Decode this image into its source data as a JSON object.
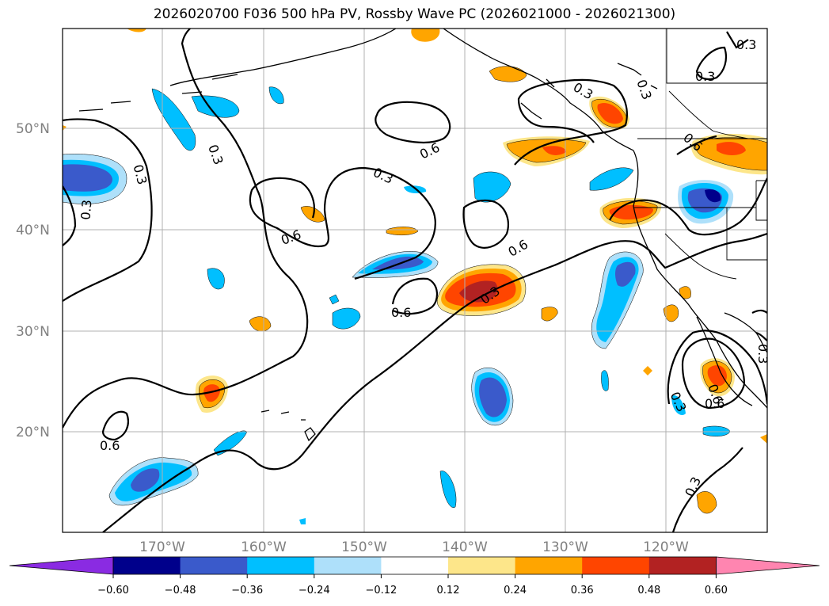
{
  "title": "2026020700 F036 500 hPa PV, Rossby Wave PC (2026021000 - 2026021300)",
  "lat_labels": [
    "50°N",
    "40°N",
    "30°N",
    "20°N"
  ],
  "lon_labels": [
    "170°W",
    "160°W",
    "150°W",
    "140°W",
    "130°W",
    "120°W"
  ],
  "contour_labels": [
    "0.3",
    "0.3",
    "0.3",
    "0.3",
    "0.3",
    "0.3",
    "0.3",
    "0.3",
    "0.3",
    "0.6",
    "0.6",
    "0.6",
    "0.6",
    "0.6",
    "0.6",
    "0.6",
    "0.6",
    "0.3",
    "0.3",
    "0.3"
  ],
  "colorbar": {
    "ticks": [
      "−0.60",
      "−0.48",
      "−0.36",
      "−0.24",
      "−0.12",
      "0.12",
      "0.24",
      "0.36",
      "0.48",
      "0.60"
    ],
    "colors": [
      "#8a2be2",
      "#00008b",
      "#3a5acb",
      "#00bfff",
      "#aee0fa",
      "#ffffff",
      "#fde68a",
      "#ffa500",
      "#ff4500",
      "#b22222",
      "#ff85b0"
    ]
  }
}
